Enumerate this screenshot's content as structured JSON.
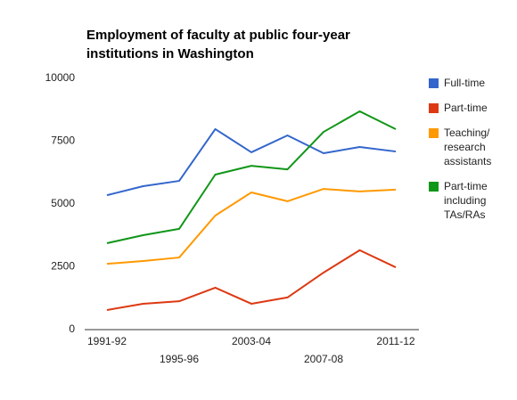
{
  "chart_data": {
    "type": "line",
    "title": [
      "Employment of faculty at public four-year",
      "institutions in Washington"
    ],
    "categories": [
      "1991-92",
      null,
      "1995-96",
      null,
      "2003-04",
      null,
      "2007-08",
      null,
      "2011-12"
    ],
    "series": [
      {
        "name": "Full-time",
        "color": "#3366cc",
        "values": [
          5350,
          5710,
          5920,
          7980,
          7060,
          7730,
          7020,
          7270,
          7090
        ]
      },
      {
        "name": "Part-time",
        "color": "#dc3912",
        "values": [
          780,
          1030,
          1130,
          1670,
          1030,
          1280,
          2270,
          3160,
          2480
        ]
      },
      {
        "name": "Teaching/ research assistants",
        "color": "#ff9900",
        "values": [
          2620,
          2730,
          2870,
          4540,
          5460,
          5110,
          5600,
          5500,
          5570
        ]
      },
      {
        "name": "Part-time including TAs/RAs",
        "color": "#109618",
        "values": [
          3440,
          3760,
          4010,
          6170,
          6520,
          6380,
          7870,
          8690,
          7980
        ]
      }
    ],
    "ylim": [
      0,
      10000
    ],
    "yticks": [
      0,
      2500,
      5000,
      7500,
      10000
    ],
    "grid": false,
    "legend": "right"
  }
}
